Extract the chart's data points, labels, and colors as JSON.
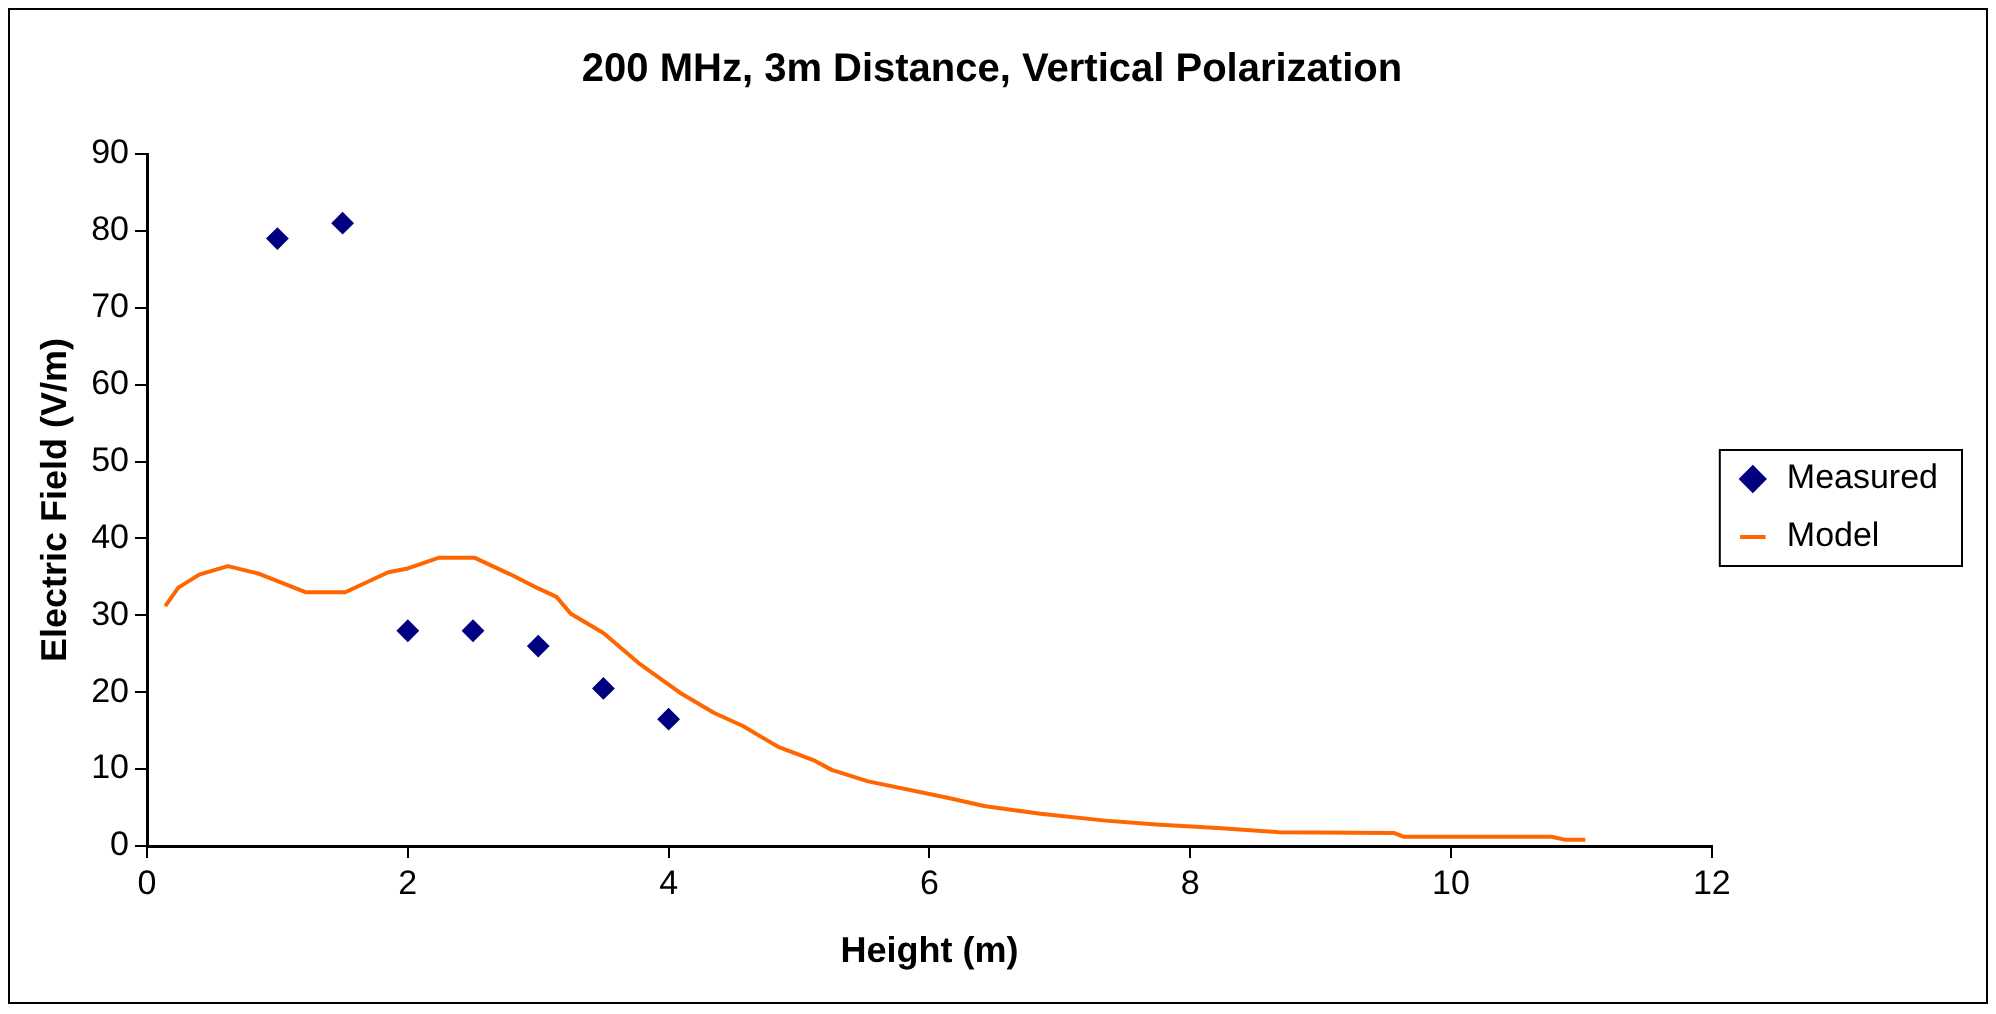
{
  "chart_data": {
    "type": "scatter",
    "title": "200 MHz, 3m Distance, Vertical Polarization",
    "xlabel": "Height (m)",
    "ylabel": "Electric Field (V/m)",
    "xlim": [
      0,
      12
    ],
    "xticks": [
      0,
      2,
      4,
      6,
      8,
      10,
      12
    ],
    "ylim": [
      0,
      90
    ],
    "yticks": [
      0,
      10,
      20,
      30,
      40,
      50,
      60,
      70,
      80,
      90
    ],
    "grid": false,
    "legend": "right",
    "series": [
      {
        "name": "Measured",
        "marker": "diamond",
        "color": "#000080",
        "x": [
          1,
          1.5,
          2,
          2.5,
          3,
          3.5,
          4
        ],
        "values": [
          79,
          81,
          28,
          28,
          26,
          20.5,
          16.5
        ]
      },
      {
        "name": "Model",
        "type": "line",
        "marker": "none",
        "color": "#ff6600",
        "x": [
          0.14,
          0.24,
          0.4,
          0.62,
          0.86,
          1.22,
          1.52,
          1.85,
          2.0,
          2.24,
          2.51,
          2.79,
          3.0,
          3.14,
          3.25,
          3.5,
          3.77,
          4.1,
          4.35,
          4.57,
          4.84,
          5.12,
          5.25,
          5.53,
          6.13,
          6.42,
          6.85,
          7.35,
          7.74,
          8.24,
          8.68,
          9.56,
          9.64,
          10.77,
          10.88,
          11.03
        ],
        "values": [
          31.2,
          33.6,
          35.3,
          36.4,
          35.4,
          33,
          33,
          35.6,
          36.1,
          37.5,
          37.5,
          35.3,
          33.5,
          32.4,
          30.2,
          27.7,
          23.8,
          19.8,
          17.3,
          15.6,
          12.9,
          11.1,
          9.9,
          8.4,
          6.3,
          5.2,
          4.2,
          3.3,
          2.8,
          2.3,
          1.8,
          1.7,
          1.2,
          1.2,
          0.8,
          0.8
        ]
      }
    ]
  }
}
